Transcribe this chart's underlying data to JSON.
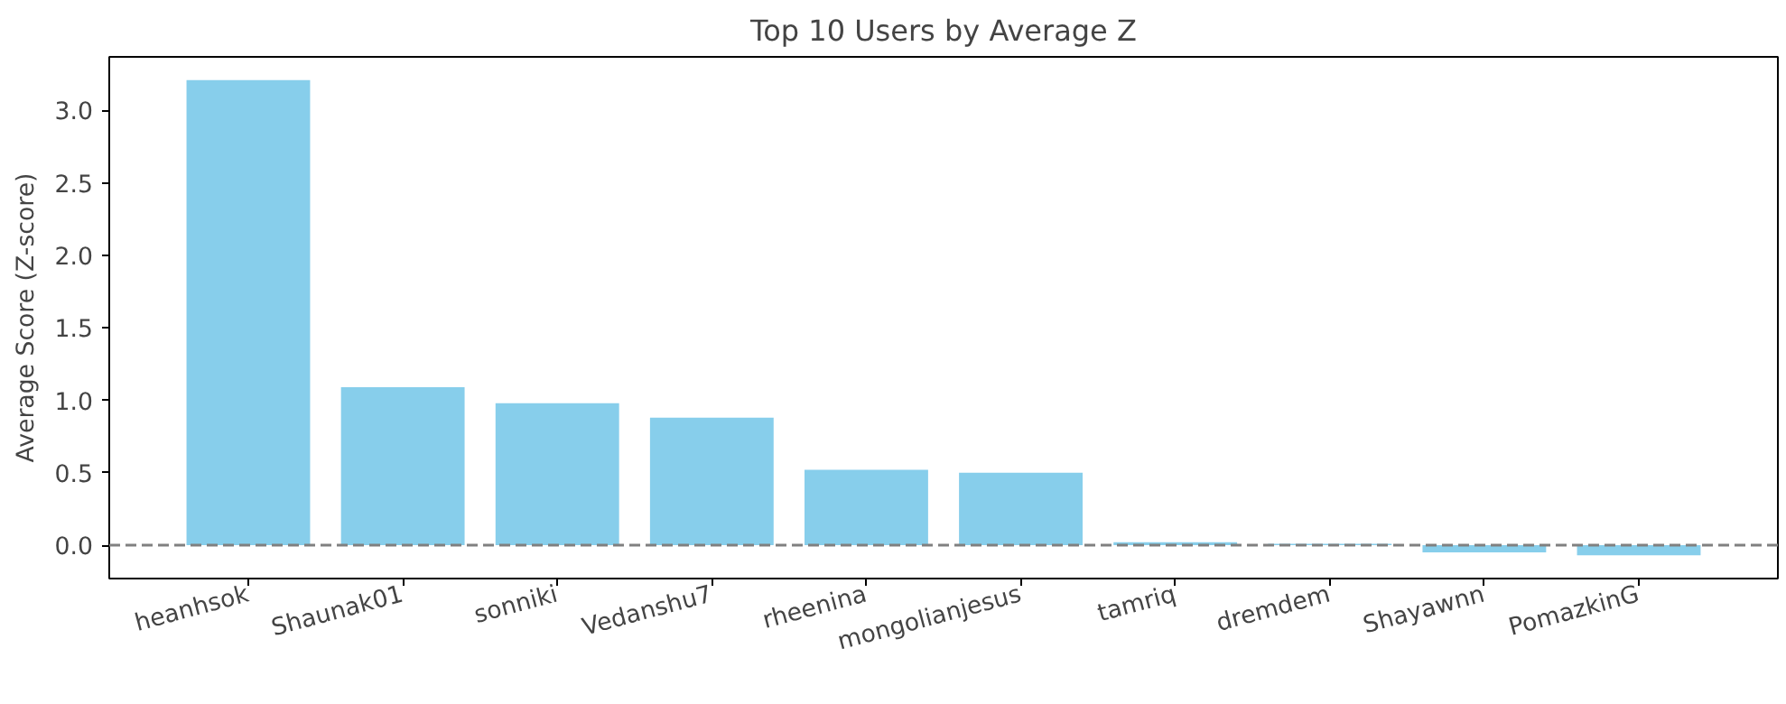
{
  "chart_data": {
    "type": "bar",
    "title": "Top 10 Users by Average Z",
    "ylabel": "Average Score (Z-score)",
    "categories": [
      "heanhsok",
      "Shaunak01",
      "sonniki",
      "Vedanshu7",
      "rheenina",
      "mongolianjesus",
      "tamriq",
      "dremdem",
      "Shayawnn",
      "PomazkinG"
    ],
    "values": [
      3.21,
      1.09,
      0.98,
      0.88,
      0.52,
      0.5,
      0.02,
      0.01,
      -0.05,
      -0.07
    ],
    "color": "#87ceeb",
    "ylim": [
      -0.23,
      3.37
    ],
    "yticks": [
      {
        "value": 0,
        "label": "0.0"
      },
      {
        "value": 0.5,
        "label": "0.5"
      },
      {
        "value": 1,
        "label": "1.0"
      },
      {
        "value": 1.5,
        "label": "1.5"
      },
      {
        "value": 2,
        "label": "2.0"
      },
      {
        "value": 2.5,
        "label": "2.5"
      },
      {
        "value": 3,
        "label": "3.0"
      }
    ],
    "ref_lines": [
      {
        "axis": "y",
        "value": 0,
        "color": "#808080",
        "line_style": "dashed"
      }
    ],
    "grid": false
  }
}
